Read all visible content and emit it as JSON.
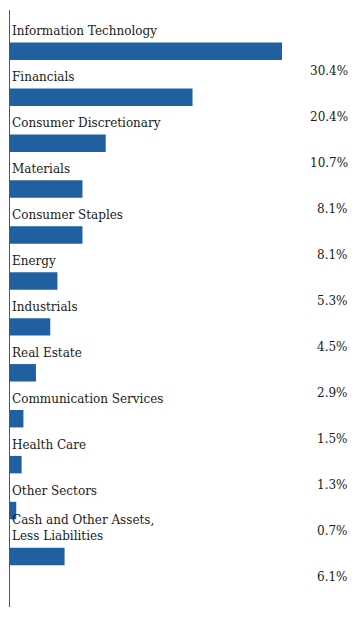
{
  "chart_data": {
    "type": "bar",
    "orientation": "horizontal",
    "categories": [
      "Information Technology",
      "Financials",
      "Consumer Discretionary",
      "Materials",
      "Consumer Staples",
      "Energy",
      "Industrials",
      "Real Estate",
      "Communication Services",
      "Health Care",
      "Other Sectors",
      "Cash and Other Assets,\nLess Liabilities"
    ],
    "values": [
      30.4,
      20.4,
      10.7,
      8.1,
      8.1,
      5.3,
      4.5,
      2.9,
      1.5,
      1.3,
      0.7,
      6.1
    ],
    "value_labels": [
      "30.4%",
      "20.4%",
      "10.7%",
      "8.1%",
      "8.1%",
      "5.3%",
      "4.5%",
      "2.9%",
      "1.5%",
      "1.3%",
      "0.7%",
      "6.1%"
    ],
    "data_labels": true,
    "color": "#2060A0",
    "xlim": [
      0,
      38
    ],
    "grid": false,
    "tick_labels": false
  }
}
